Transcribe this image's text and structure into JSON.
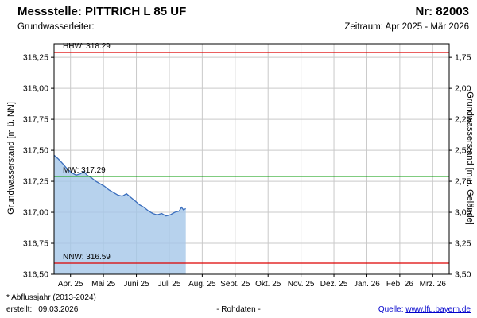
{
  "header": {
    "station_label": "Messstelle: PITTRICH L 85 UF",
    "number_label": "Nr: 82003",
    "aquifer_label": "Grundwasserleiter:",
    "period_label": "Zeitraum: Apr 2025 - Mär 2026"
  },
  "chart_data": {
    "type": "area",
    "title": "",
    "xlabel": "",
    "ylabel_left": "Grundwasserstand [m ü. NN]",
    "ylabel_right": "Grundwasserstand [m u. Gelände]",
    "ylim_left": [
      316.5,
      318.36
    ],
    "grid": true,
    "x_ticks": [
      "Apr. 25",
      "Mai 25",
      "Juni 25",
      "Juli 25",
      "Aug. 25",
      "Sept. 25",
      "Okt. 25",
      "Nov. 25",
      "Dez. 25",
      "Jan. 26",
      "Feb. 26",
      "Mrz. 26"
    ],
    "left_ticks": [
      {
        "label": "318,25",
        "value": 318.25
      },
      {
        "label": "318,00",
        "value": 318.0
      },
      {
        "label": "317,75",
        "value": 317.75
      },
      {
        "label": "317,50",
        "value": 317.5
      },
      {
        "label": "317,25",
        "value": 317.25
      },
      {
        "label": "317,00",
        "value": 317.0
      },
      {
        "label": "316,75",
        "value": 316.75
      },
      {
        "label": "316,50",
        "value": 316.5
      }
    ],
    "right_tick_labels": [
      "1,75",
      "2,00",
      "2,25",
      "2,50",
      "2,75",
      "3,00",
      "3,25",
      "3,50"
    ],
    "ref_lines": [
      {
        "name": "HHW",
        "label": "HHW: 318.29",
        "value": 318.29,
        "color": "#dd0000"
      },
      {
        "name": "MW",
        "label": "MW: 317.29",
        "value": 317.29,
        "color": "#009900"
      },
      {
        "name": "NNW",
        "label": "NNW: 316.59",
        "value": 316.59,
        "color": "#dd0000"
      }
    ],
    "series": [
      {
        "name": "Grundwasserstand Rohdaten",
        "x_months": [
          0,
          0.13,
          0.27,
          0.4,
          0.53,
          0.67,
          0.8,
          0.9,
          1.0,
          1.13,
          1.27,
          1.4,
          1.53,
          1.67,
          1.8,
          1.93,
          2.07,
          2.2,
          2.33,
          2.47,
          2.6,
          2.73,
          2.87,
          3.0,
          3.13,
          3.27,
          3.4,
          3.53,
          3.67,
          3.8,
          3.87,
          3.93,
          4.0
        ],
        "values": [
          317.46,
          317.43,
          317.39,
          317.35,
          317.32,
          317.3,
          317.31,
          317.33,
          317.3,
          317.28,
          317.25,
          317.23,
          317.21,
          317.18,
          317.16,
          317.14,
          317.13,
          317.15,
          317.12,
          317.09,
          317.06,
          317.04,
          317.01,
          316.99,
          316.98,
          316.99,
          316.97,
          316.98,
          317.0,
          317.01,
          317.04,
          317.02,
          317.03
        ]
      }
    ],
    "colors": {
      "area_fill": "#a5c7e9",
      "area_line": "#3a6ebd",
      "grid": "#c9c9c9",
      "border": "#000000"
    }
  },
  "footer": {
    "note": "* Abflussjahr (2013-2024)",
    "created_label": "erstellt:",
    "created_date": "09.03.2026",
    "center": "- Rohdaten -",
    "source_label": "Quelle:",
    "source_link": "www.lfu.bayern.de"
  }
}
